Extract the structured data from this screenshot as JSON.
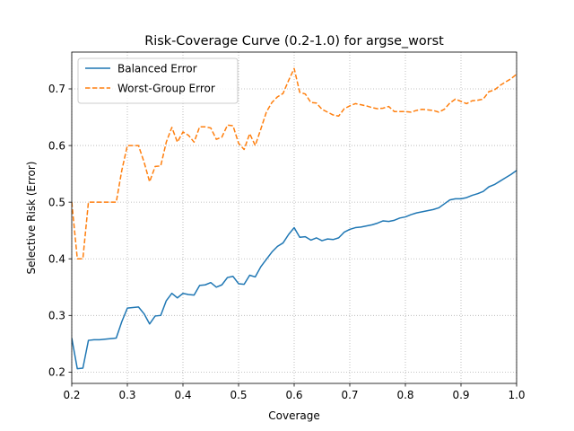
{
  "chart_data": {
    "type": "line",
    "title": "Risk-Coverage Curve (0.2-1.0) for argse_worst",
    "xlabel": "Coverage",
    "ylabel": "Selective Risk (Error)",
    "xlim": [
      0.2,
      1.0
    ],
    "ylim": [
      0.18,
      0.765
    ],
    "xticks": [
      0.2,
      0.3,
      0.4,
      0.5,
      0.6,
      0.7,
      0.8,
      0.9,
      1.0
    ],
    "xtick_labels": [
      "0.2",
      "0.3",
      "0.4",
      "0.5",
      "0.6",
      "0.7",
      "0.8",
      "0.9",
      "1.0"
    ],
    "yticks": [
      0.2,
      0.3,
      0.4,
      0.5,
      0.6,
      0.7
    ],
    "ytick_labels": [
      "0.2",
      "0.3",
      "0.4",
      "0.5",
      "0.6",
      "0.7"
    ],
    "grid": true,
    "legend_position": "top-left",
    "x": [
      0.2,
      0.21,
      0.22,
      0.23,
      0.24,
      0.25,
      0.26,
      0.27,
      0.28,
      0.29,
      0.3,
      0.31,
      0.32,
      0.33,
      0.34,
      0.35,
      0.36,
      0.37,
      0.38,
      0.39,
      0.4,
      0.41,
      0.42,
      0.43,
      0.44,
      0.45,
      0.46,
      0.47,
      0.48,
      0.49,
      0.5,
      0.51,
      0.52,
      0.53,
      0.54,
      0.55,
      0.56,
      0.57,
      0.58,
      0.59,
      0.6,
      0.61,
      0.62,
      0.63,
      0.64,
      0.65,
      0.66,
      0.67,
      0.68,
      0.69,
      0.7,
      0.71,
      0.72,
      0.73,
      0.74,
      0.75,
      0.76,
      0.77,
      0.78,
      0.79,
      0.8,
      0.81,
      0.82,
      0.83,
      0.84,
      0.85,
      0.86,
      0.87,
      0.88,
      0.89,
      0.9,
      0.91,
      0.92,
      0.93,
      0.94,
      0.95,
      0.96,
      0.97,
      0.98,
      0.99,
      1.0
    ],
    "series": [
      {
        "name": "Balanced Error",
        "color": "#1f77b4",
        "dash": "solid",
        "values": [
          0.26,
          0.206,
          0.207,
          0.256,
          0.257,
          0.257,
          0.258,
          0.259,
          0.26,
          0.289,
          0.313,
          0.314,
          0.315,
          0.303,
          0.285,
          0.299,
          0.3,
          0.326,
          0.339,
          0.331,
          0.339,
          0.337,
          0.336,
          0.353,
          0.354,
          0.358,
          0.35,
          0.354,
          0.367,
          0.369,
          0.356,
          0.355,
          0.371,
          0.368,
          0.386,
          0.399,
          0.412,
          0.422,
          0.428,
          0.443,
          0.455,
          0.438,
          0.439,
          0.433,
          0.437,
          0.432,
          0.435,
          0.434,
          0.437,
          0.447,
          0.452,
          0.455,
          0.456,
          0.458,
          0.46,
          0.463,
          0.467,
          0.466,
          0.468,
          0.472,
          0.474,
          0.478,
          0.481,
          0.483,
          0.485,
          0.487,
          0.49,
          0.497,
          0.504,
          0.506,
          0.506,
          0.508,
          0.512,
          0.515,
          0.519,
          0.527,
          0.531,
          0.537,
          0.543,
          0.549,
          0.556
        ]
      },
      {
        "name": "Worst-Group Error",
        "color": "#ff7f0e",
        "dash": "dashed",
        "values": [
          0.5,
          0.4,
          0.4,
          0.5,
          0.5,
          0.5,
          0.5,
          0.5,
          0.5,
          0.556,
          0.6,
          0.6,
          0.6,
          0.571,
          0.536,
          0.563,
          0.564,
          0.606,
          0.632,
          0.606,
          0.624,
          0.618,
          0.606,
          0.633,
          0.633,
          0.631,
          0.611,
          0.615,
          0.636,
          0.635,
          0.604,
          0.593,
          0.621,
          0.6,
          0.629,
          0.659,
          0.676,
          0.686,
          0.692,
          0.715,
          0.736,
          0.694,
          0.691,
          0.676,
          0.675,
          0.664,
          0.659,
          0.654,
          0.652,
          0.665,
          0.67,
          0.674,
          0.672,
          0.67,
          0.667,
          0.665,
          0.666,
          0.669,
          0.66,
          0.66,
          0.66,
          0.659,
          0.662,
          0.664,
          0.663,
          0.662,
          0.659,
          0.664,
          0.675,
          0.682,
          0.678,
          0.674,
          0.679,
          0.68,
          0.682,
          0.695,
          0.698,
          0.706,
          0.712,
          0.718,
          0.726
        ]
      }
    ]
  }
}
